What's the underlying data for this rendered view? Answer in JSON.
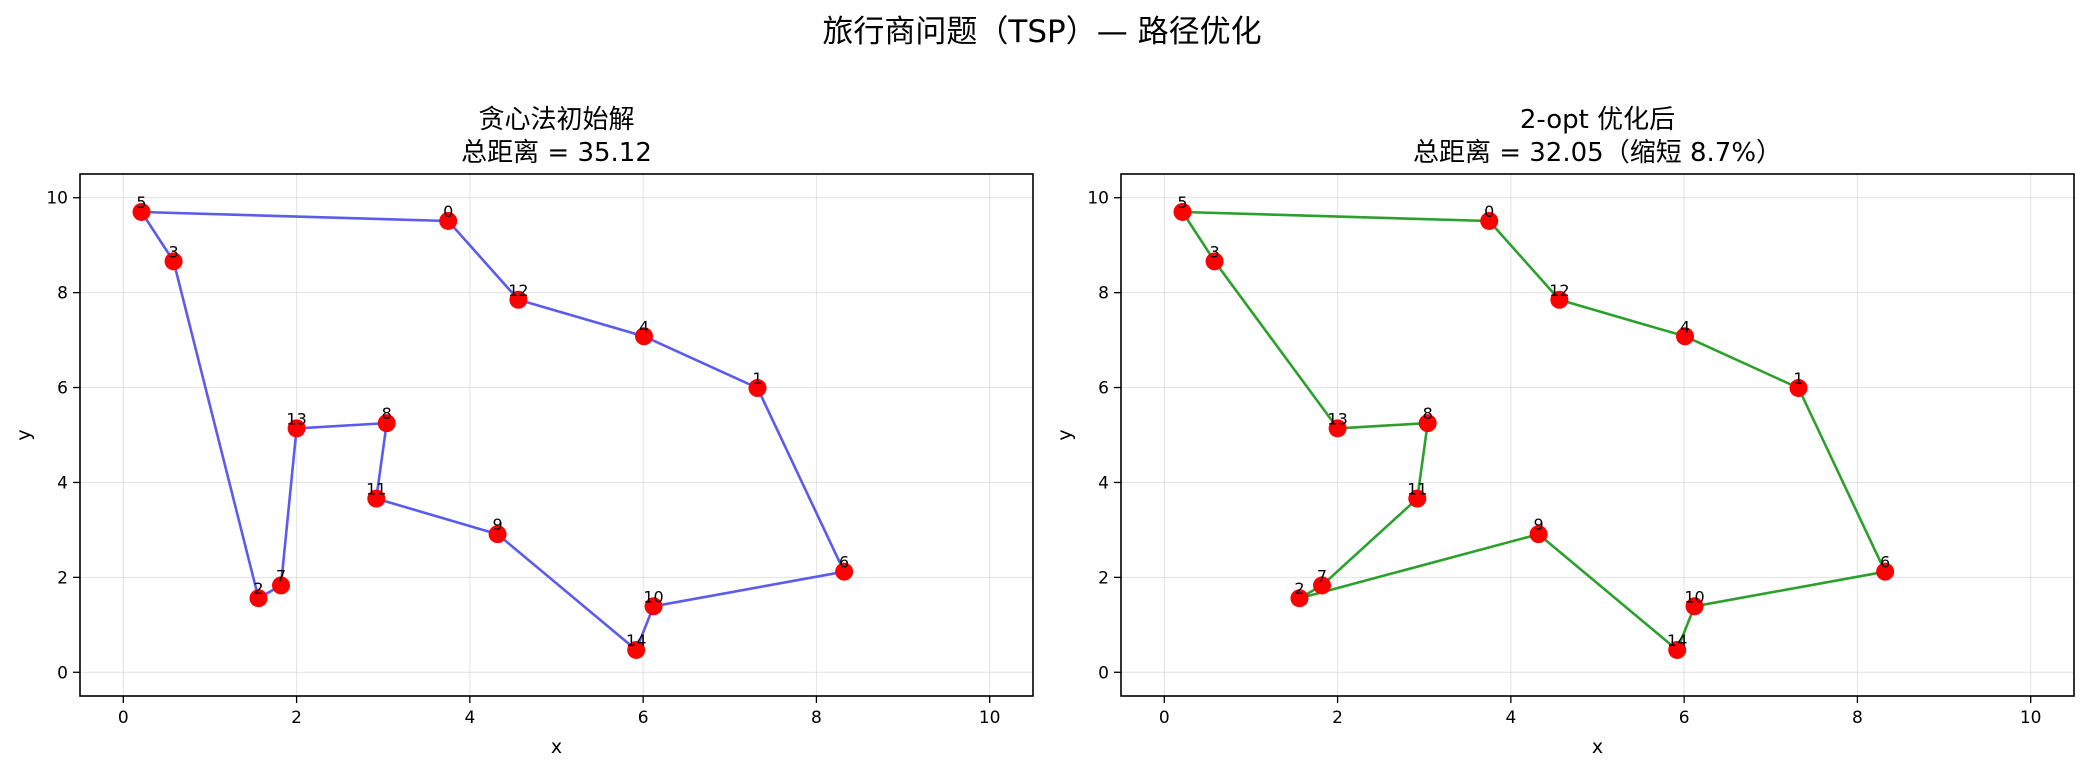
{
  "suptitle": "旅行商问题（TSP）— 路径优化",
  "nodes": [
    {
      "id": "0",
      "x": 3.75,
      "y": 9.51
    },
    {
      "id": "1",
      "x": 7.32,
      "y": 5.99
    },
    {
      "id": "2",
      "x": 1.56,
      "y": 1.56
    },
    {
      "id": "3",
      "x": 0.58,
      "y": 8.66
    },
    {
      "id": "4",
      "x": 6.01,
      "y": 7.08
    },
    {
      "id": "5",
      "x": 0.21,
      "y": 9.7
    },
    {
      "id": "6",
      "x": 8.32,
      "y": 2.12
    },
    {
      "id": "7",
      "x": 1.82,
      "y": 1.83
    },
    {
      "id": "8",
      "x": 3.04,
      "y": 5.25
    },
    {
      "id": "9",
      "x": 4.32,
      "y": 2.91
    },
    {
      "id": "10",
      "x": 6.12,
      "y": 1.39
    },
    {
      "id": "11",
      "x": 2.92,
      "y": 3.66
    },
    {
      "id": "12",
      "x": 4.56,
      "y": 7.85
    },
    {
      "id": "13",
      "x": 2.0,
      "y": 5.14
    },
    {
      "id": "14",
      "x": 5.92,
      "y": 0.47
    }
  ],
  "chart_data": [
    {
      "type": "line",
      "title": "贪心法初始解",
      "subtitle": "总距离 = 35.12",
      "xlabel": "x",
      "ylabel": "y",
      "xlim": [
        -0.5,
        10.5
      ],
      "ylim": [
        -0.5,
        10.5
      ],
      "xticks": [
        "0",
        "2",
        "4",
        "6",
        "8",
        "10"
      ],
      "yticks": [
        "0",
        "2",
        "4",
        "6",
        "8",
        "10"
      ],
      "grid": true,
      "route_color": "#5b5bef",
      "node_color": "#ff0000",
      "route": [
        "0",
        "12",
        "4",
        "1",
        "6",
        "10",
        "14",
        "9",
        "11",
        "8",
        "13",
        "7",
        "2",
        "3",
        "5",
        "0"
      ]
    },
    {
      "type": "line",
      "title": "2-opt 优化后",
      "subtitle": "总距离 = 32.05（缩短 8.7%）",
      "xlabel": "x",
      "ylabel": "y",
      "xlim": [
        -0.5,
        10.5
      ],
      "ylim": [
        -0.5,
        10.5
      ],
      "xticks": [
        "0",
        "2",
        "4",
        "6",
        "8",
        "10"
      ],
      "yticks": [
        "0",
        "2",
        "4",
        "6",
        "8",
        "10"
      ],
      "grid": true,
      "route_color": "#2ca02c",
      "node_color": "#ff0000",
      "route": [
        "0",
        "12",
        "4",
        "1",
        "6",
        "10",
        "14",
        "9",
        "2",
        "7",
        "11",
        "8",
        "13",
        "3",
        "5",
        "0"
      ]
    }
  ]
}
